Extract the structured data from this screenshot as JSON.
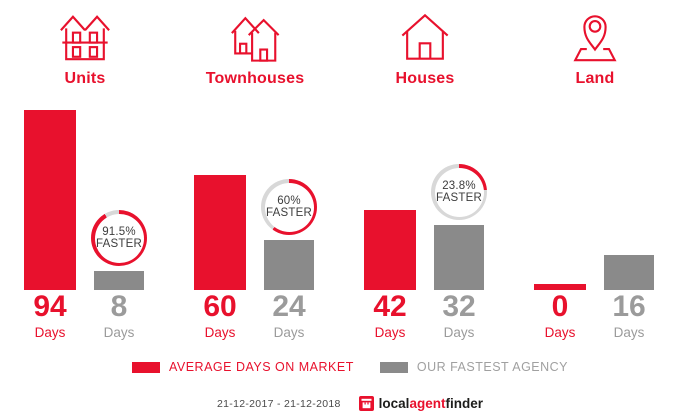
{
  "colors": {
    "red": "#e8112d",
    "gray": "#8a8a8a",
    "value_gray": "#9b9b9b",
    "ring_gray": "#d8d8d8",
    "badge_text": "#3d3d3d",
    "legend_gray": "#a0a0a0",
    "date_text": "#4a4a4a",
    "logo_dark": "#1d1d1b"
  },
  "chart_data": {
    "type": "bar",
    "categories": [
      "Units",
      "Townhouses",
      "Houses",
      "Land"
    ],
    "category_icons": [
      "units-icon",
      "townhouses-icon",
      "house-icon",
      "land-icon"
    ],
    "series": [
      {
        "name": "AVERAGE DAYS ON MARKET",
        "color": "#e8112d",
        "values": [
          94,
          60,
          42,
          0
        ]
      },
      {
        "name": "OUR FASTEST AGENCY",
        "color": "#8a8a8a",
        "values": [
          8,
          24,
          32,
          16
        ]
      }
    ],
    "value_unit": "Days",
    "badges": [
      {
        "label": "91.5%",
        "sublabel": "FASTER",
        "percent": 91.5
      },
      {
        "label": "60%",
        "sublabel": "FASTER",
        "percent": 60
      },
      {
        "label": "23.8%",
        "sublabel": "FASTER",
        "percent": 23.8
      },
      null
    ],
    "ylim": [
      0,
      94
    ],
    "grid": false,
    "legend_position": "bottom"
  },
  "legend": {
    "items": [
      {
        "label": "AVERAGE DAYS ON MARKET",
        "color": "#e8112d"
      },
      {
        "label": "OUR FASTEST AGENCY",
        "color": "#8a8a8a"
      }
    ]
  },
  "footer": {
    "date_range": "21-12-2017 - 21-12-2018",
    "logo": {
      "parts": [
        {
          "text": "local",
          "color": "#1d1d1b"
        },
        {
          "text": "agent",
          "color": "#e8112d"
        },
        {
          "text": "finder",
          "color": "#1d1d1b"
        }
      ]
    }
  }
}
